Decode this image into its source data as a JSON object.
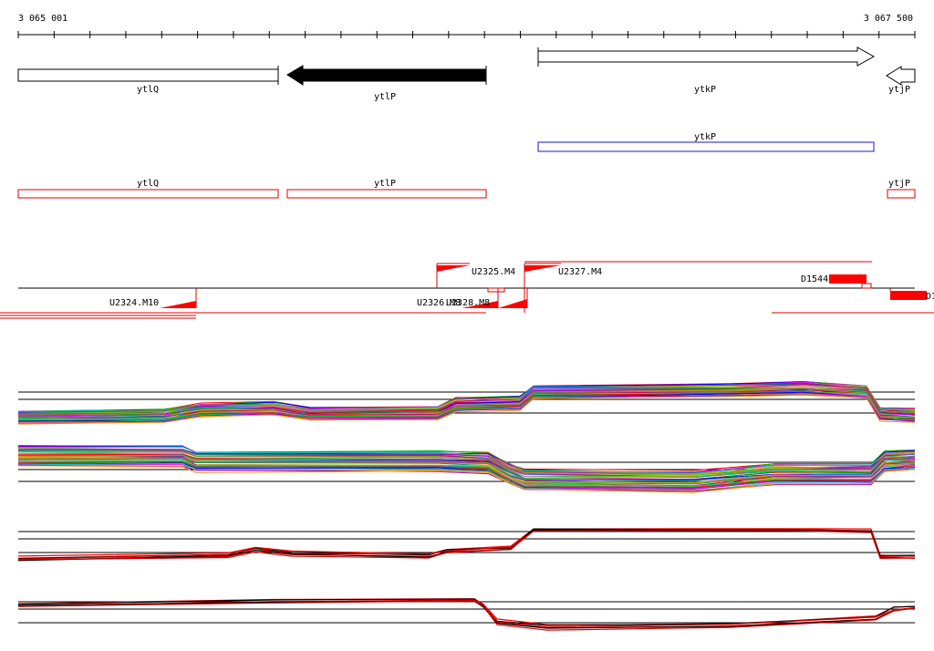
{
  "ruler": {
    "start_label": "3 065 001",
    "end_label": "3 067 500"
  },
  "genes": [
    {
      "name": "ytlQ",
      "strand": "+",
      "filled": false
    },
    {
      "name": "ytlP",
      "strand": "-",
      "filled": true
    },
    {
      "name": "ytkP",
      "strand": "+",
      "filled": false
    },
    {
      "name": "ytjP",
      "strand": "-",
      "filled": false
    }
  ],
  "blue_track": [
    {
      "name": "ytkP"
    }
  ],
  "red_track": [
    {
      "name": "ytlQ"
    },
    {
      "name": "ytlP"
    },
    {
      "name": "ytjP"
    }
  ],
  "features": [
    {
      "label": "U2325.M4"
    },
    {
      "label": "U2327.M4"
    },
    {
      "label": "D1544"
    },
    {
      "label": "U2324.M10"
    },
    {
      "label": "U2326.M8"
    },
    {
      "label": "U2328.M8"
    },
    {
      "label": "D1"
    }
  ],
  "colors": {
    "gene_outline": "#000000",
    "gene_fill": "#000000",
    "blue_track": "#1a1acc",
    "red_track": "#e00000",
    "feature": "#ff0000"
  },
  "expression_palette": [
    "#ff0000",
    "#00aa00",
    "#0000ff",
    "#ff00ff",
    "#00cccc",
    "#cc9900",
    "#9900cc",
    "#ff8800",
    "#008888",
    "#88cc00",
    "#cc0066",
    "#3366ff",
    "#aaaa00",
    "#00cc66",
    "#ff66cc",
    "#666666"
  ]
}
